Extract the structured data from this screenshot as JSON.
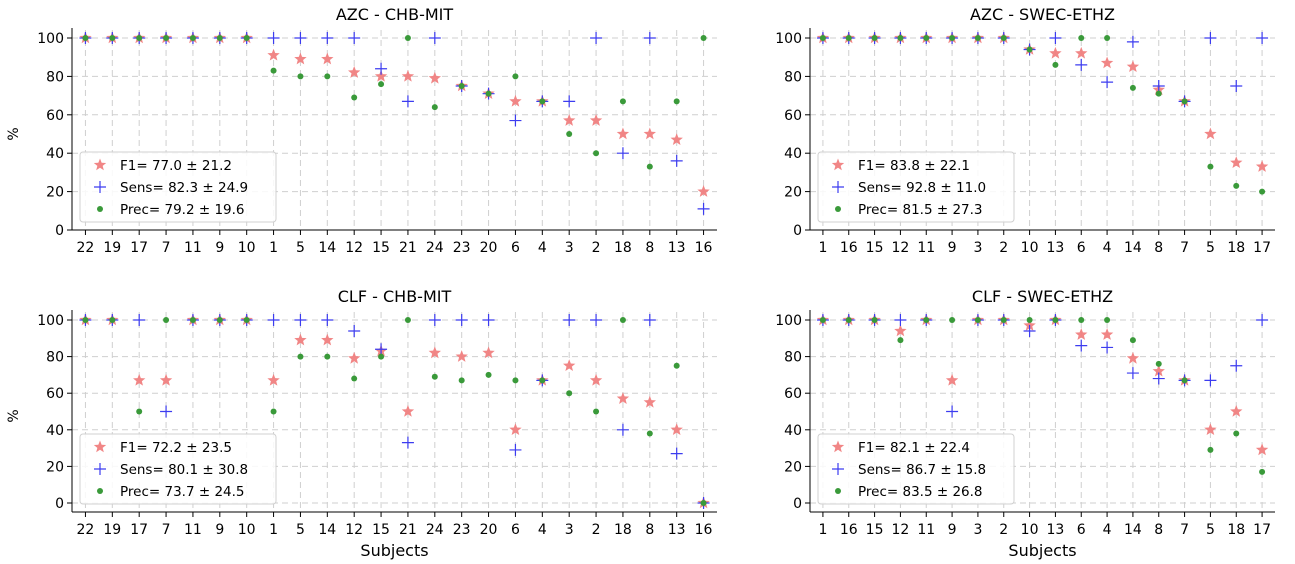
{
  "chart_data": [
    {
      "type": "scatter",
      "title": "AZC - CHB-MIT",
      "xlabel": "",
      "ylabel": "%",
      "ylim": [
        0,
        100
      ],
      "yticks": [
        0,
        20,
        40,
        60,
        80,
        100
      ],
      "grid": true,
      "legend_position": "lower-left",
      "categories": [
        "22",
        "19",
        "17",
        "7",
        "11",
        "9",
        "10",
        "1",
        "5",
        "14",
        "12",
        "15",
        "21",
        "24",
        "23",
        "20",
        "6",
        "4",
        "3",
        "2",
        "18",
        "8",
        "13",
        "16"
      ],
      "series": [
        {
          "key": "f1",
          "marker": "star",
          "color": "#f08080",
          "legend_label": "F1= 77.0 ± 21.2",
          "values": [
            100,
            100,
            100,
            100,
            100,
            100,
            100,
            91,
            89,
            89,
            82,
            80,
            80,
            79,
            75,
            71,
            67,
            67,
            57,
            57,
            50,
            50,
            47,
            20
          ]
        },
        {
          "key": "sens",
          "marker": "plus",
          "color": "#3c3cf0",
          "legend_label": "Sens= 82.3 ± 24.9",
          "values": [
            100,
            100,
            100,
            100,
            100,
            100,
            100,
            100,
            100,
            100,
            100,
            84,
            67,
            100,
            75,
            71,
            57,
            67,
            67,
            100,
            40,
            100,
            36,
            11
          ]
        },
        {
          "key": "prec",
          "marker": "dot",
          "color": "#3a9a3a",
          "legend_label": "Prec= 79.2 ± 19.6",
          "values": [
            100,
            100,
            100,
            100,
            100,
            100,
            100,
            83,
            80,
            80,
            69,
            76,
            100,
            64,
            75,
            71,
            80,
            67,
            50,
            40,
            67,
            33,
            67,
            100
          ]
        }
      ]
    },
    {
      "type": "scatter",
      "title": "AZC - SWEC-ETHZ",
      "xlabel": "",
      "ylabel": "",
      "ylim": [
        0,
        100
      ],
      "yticks": [
        0,
        20,
        40,
        60,
        80,
        100
      ],
      "grid": true,
      "legend_position": "lower-left",
      "categories": [
        "1",
        "16",
        "15",
        "12",
        "11",
        "9",
        "3",
        "2",
        "10",
        "13",
        "6",
        "4",
        "14",
        "8",
        "7",
        "5",
        "18",
        "17"
      ],
      "series": [
        {
          "key": "f1",
          "marker": "star",
          "color": "#f08080",
          "legend_label": "F1= 83.8 ± 22.1",
          "values": [
            100,
            100,
            100,
            100,
            100,
            100,
            100,
            100,
            94,
            92,
            92,
            87,
            85,
            73,
            67,
            50,
            35,
            33
          ]
        },
        {
          "key": "sens",
          "marker": "plus",
          "color": "#3c3cf0",
          "legend_label": "Sens= 92.8 ± 11.0",
          "values": [
            100,
            100,
            100,
            100,
            100,
            100,
            100,
            100,
            94,
            100,
            86,
            77,
            98,
            75,
            67,
            100,
            75,
            100
          ]
        },
        {
          "key": "prec",
          "marker": "dot",
          "color": "#3a9a3a",
          "legend_label": "Prec= 81.5 ± 27.3",
          "values": [
            100,
            100,
            100,
            100,
            100,
            100,
            100,
            100,
            94,
            86,
            100,
            100,
            74,
            71,
            67,
            33,
            23,
            20
          ]
        }
      ]
    },
    {
      "type": "scatter",
      "title": "CLF - CHB-MIT",
      "xlabel": "Subjects",
      "ylabel": "%",
      "ylim": [
        0,
        100
      ],
      "yticks": [
        0,
        20,
        40,
        60,
        80,
        100
      ],
      "grid": true,
      "legend_position": "lower-left",
      "categories": [
        "22",
        "19",
        "17",
        "7",
        "11",
        "9",
        "10",
        "1",
        "5",
        "14",
        "12",
        "15",
        "21",
        "24",
        "23",
        "20",
        "6",
        "4",
        "3",
        "2",
        "18",
        "8",
        "13",
        "16"
      ],
      "series": [
        {
          "key": "f1",
          "marker": "star",
          "color": "#f08080",
          "legend_label": "F1= 72.2 ± 23.5",
          "values": [
            100,
            100,
            67,
            67,
            100,
            100,
            100,
            67,
            89,
            89,
            79,
            83,
            50,
            82,
            80,
            82,
            40,
            67,
            75,
            67,
            57,
            55,
            40,
            0
          ]
        },
        {
          "key": "sens",
          "marker": "plus",
          "color": "#3c3cf0",
          "legend_label": "Sens= 80.1 ± 30.8",
          "values": [
            100,
            100,
            100,
            50,
            100,
            100,
            100,
            100,
            100,
            100,
            94,
            84,
            33,
            100,
            100,
            100,
            29,
            67,
            100,
            100,
            40,
            100,
            27,
            0
          ]
        },
        {
          "key": "prec",
          "marker": "dot",
          "color": "#3a9a3a",
          "legend_label": "Prec= 73.7 ± 24.5",
          "values": [
            100,
            100,
            50,
            100,
            100,
            100,
            100,
            50,
            80,
            80,
            68,
            80,
            100,
            69,
            67,
            70,
            67,
            67,
            60,
            50,
            100,
            38,
            75,
            0
          ]
        }
      ]
    },
    {
      "type": "scatter",
      "title": "CLF - SWEC-ETHZ",
      "xlabel": "Subjects",
      "ylabel": "",
      "ylim": [
        0,
        100
      ],
      "yticks": [
        0,
        20,
        40,
        60,
        80,
        100
      ],
      "grid": true,
      "legend_position": "lower-left",
      "categories": [
        "1",
        "16",
        "15",
        "12",
        "11",
        "9",
        "3",
        "2",
        "10",
        "13",
        "6",
        "4",
        "14",
        "8",
        "7",
        "5",
        "18",
        "17"
      ],
      "series": [
        {
          "key": "f1",
          "marker": "star",
          "color": "#f08080",
          "legend_label": "F1= 82.1 ± 22.4",
          "values": [
            100,
            100,
            100,
            94,
            100,
            67,
            100,
            100,
            97,
            100,
            92,
            92,
            79,
            72,
            67,
            40,
            50,
            29
          ]
        },
        {
          "key": "sens",
          "marker": "plus",
          "color": "#3c3cf0",
          "legend_label": "Sens= 86.7 ± 15.8",
          "values": [
            100,
            100,
            100,
            100,
            100,
            50,
            100,
            100,
            94,
            100,
            86,
            85,
            71,
            68,
            67,
            67,
            75,
            100
          ]
        },
        {
          "key": "prec",
          "marker": "dot",
          "color": "#3a9a3a",
          "legend_label": "Prec= 83.5 ± 26.8",
          "values": [
            100,
            100,
            100,
            89,
            100,
            100,
            100,
            100,
            100,
            100,
            100,
            100,
            89,
            76,
            67,
            29,
            38,
            17
          ]
        }
      ]
    }
  ]
}
